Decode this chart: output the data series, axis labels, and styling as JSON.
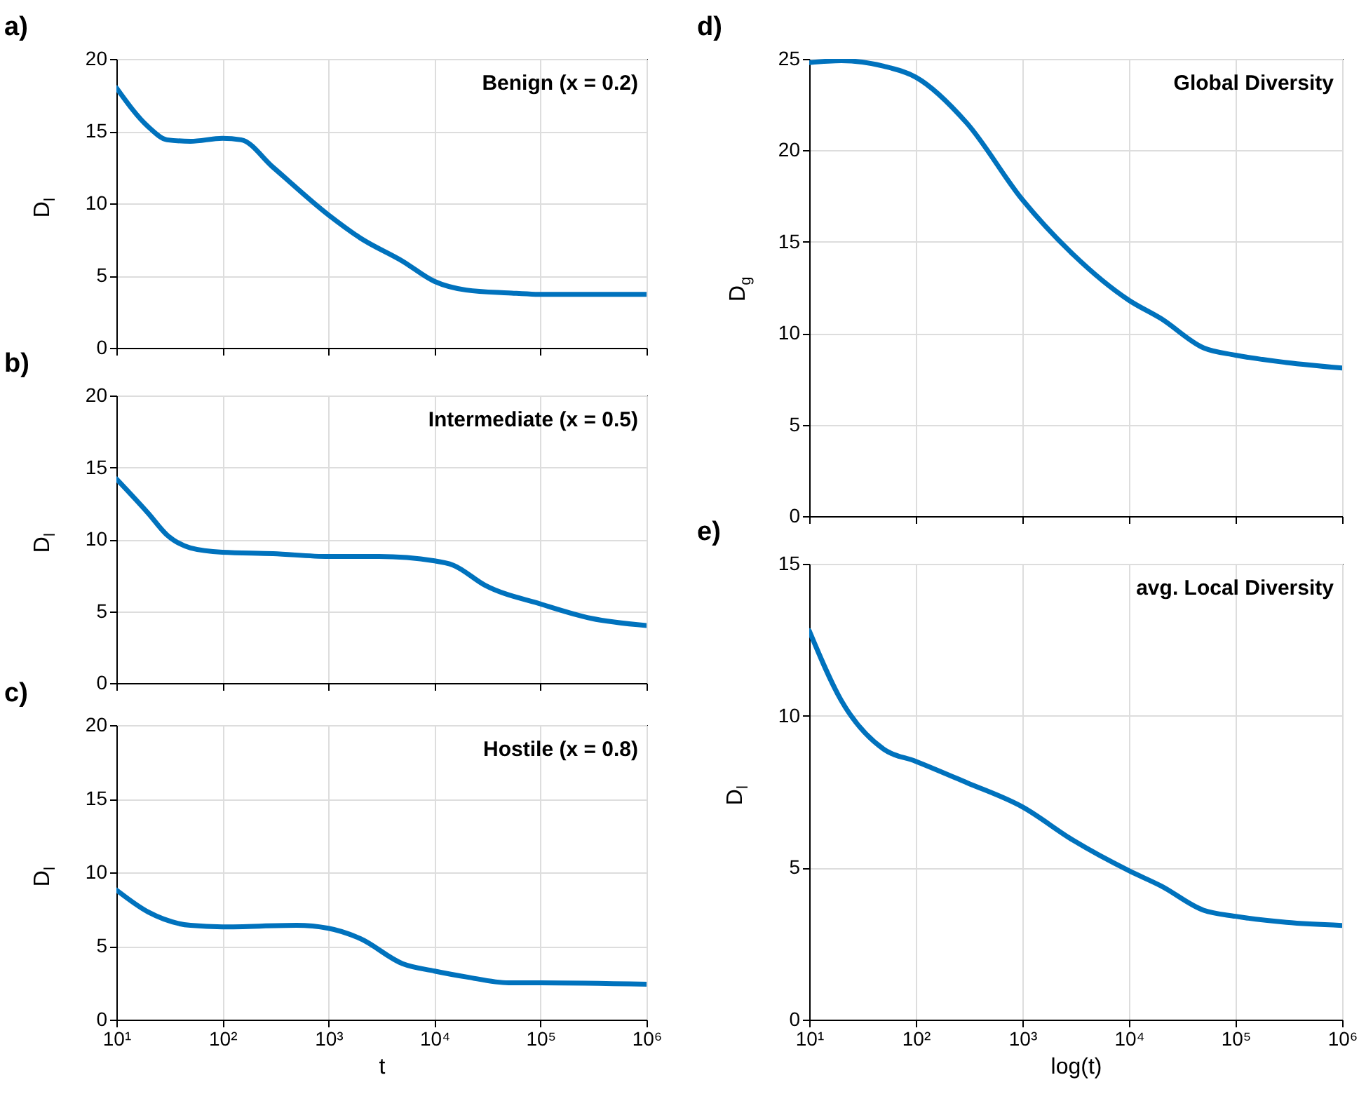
{
  "chart_data": [
    {
      "type": "line",
      "title": "a)",
      "ylabel": "D$_{l}$",
      "annotations": [
        "Benign (x = 0.2)"
      ],
      "log": "x",
      "grid": true,
      "tick_labels": "y",
      "xlim": [
        10,
        1000000
      ],
      "xticks": [
        {
          "value": 10,
          "label": null
        },
        {
          "value": 100,
          "label": null
        },
        {
          "value": 1000,
          "label": null
        },
        {
          "value": 10000,
          "label": null
        },
        {
          "value": 100000,
          "label": null
        },
        {
          "value": 1000000,
          "label": null
        }
      ],
      "ylim": [
        0,
        20
      ],
      "yticks": [
        0,
        5,
        10,
        15,
        20
      ],
      "series": [
        {
          "color": "#0072bd",
          "x": [
            10,
            20,
            30,
            50,
            100,
            150,
            300,
            1000,
            2000,
            5000,
            10000,
            20000,
            50000,
            100000,
            1000000
          ],
          "values": [
            18,
            15.3,
            14.4,
            14.3,
            14.5,
            14.4,
            12.5,
            9.2,
            7.6,
            6.0,
            4.6,
            4.0,
            3.8,
            3.7,
            3.7
          ]
        }
      ]
    },
    {
      "type": "line",
      "title": "b)",
      "ylabel": "D$_{l}$",
      "annotations": [
        "Intermediate (x = 0.5)"
      ],
      "log": "x",
      "grid": true,
      "tick_labels": "y",
      "xlim": [
        10,
        1000000
      ],
      "xticks": [
        {
          "value": 10,
          "label": null
        },
        {
          "value": 100,
          "label": null
        },
        {
          "value": 1000,
          "label": null
        },
        {
          "value": 10000,
          "label": null
        },
        {
          "value": 100000,
          "label": null
        },
        {
          "value": 1000000,
          "label": null
        }
      ],
      "ylim": [
        0,
        20
      ],
      "yticks": [
        0,
        5,
        10,
        15,
        20
      ],
      "series": [
        {
          "color": "#0072bd",
          "x": [
            10,
            20,
            30,
            50,
            100,
            300,
            1000,
            3000,
            10000,
            15000,
            30000,
            100000,
            300000,
            1000000
          ],
          "values": [
            14.2,
            11.8,
            10.3,
            9.4,
            9.1,
            9.0,
            8.8,
            8.8,
            8.5,
            8.2,
            6.8,
            5.5,
            4.5,
            4.0
          ]
        }
      ]
    },
    {
      "type": "line",
      "title": "c)",
      "ylabel": "D$_{l}$",
      "xlabel": "t",
      "annotations": [
        "Hostile (x = 0.8)"
      ],
      "log": "x",
      "grid": true,
      "xlim": [
        10,
        1000000
      ],
      "xticks": [
        {
          "value": 10,
          "label": "10¹"
        },
        {
          "value": 100,
          "label": "10²"
        },
        {
          "value": 1000,
          "label": "10³"
        },
        {
          "value": 10000,
          "label": "10⁴"
        },
        {
          "value": 100000,
          "label": "10⁵"
        },
        {
          "value": 1000000,
          "label": "10⁶"
        }
      ],
      "ylim": [
        0,
        20
      ],
      "yticks": [
        0,
        5,
        10,
        15,
        20
      ],
      "series": [
        {
          "color": "#0072bd",
          "x": [
            10,
            20,
            50,
            100,
            500,
            1000,
            2000,
            5000,
            10000,
            20000,
            50000,
            100000,
            1000000
          ],
          "values": [
            8.8,
            7.3,
            6.4,
            6.3,
            6.4,
            6.2,
            5.5,
            3.8,
            3.3,
            2.9,
            2.5,
            2.5,
            2.4
          ]
        }
      ]
    },
    {
      "type": "line",
      "title": "d)",
      "ylabel": "D$_{g}$",
      "annotations": [
        "Global Diversity"
      ],
      "log": "x",
      "grid": true,
      "tick_labels": "y",
      "xlim": [
        10,
        1000000
      ],
      "xticks": [
        {
          "value": 10,
          "label": null
        },
        {
          "value": 100,
          "label": null
        },
        {
          "value": 1000,
          "label": null
        },
        {
          "value": 10000,
          "label": null
        },
        {
          "value": 100000,
          "label": null
        },
        {
          "value": 1000000,
          "label": null
        }
      ],
      "ylim": [
        0,
        25
      ],
      "yticks": [
        0,
        5,
        10,
        15,
        20,
        25
      ],
      "series": [
        {
          "color": "#0072bd",
          "x": [
            10,
            20,
            50,
            100,
            300,
            1000,
            3000,
            10000,
            20000,
            50000,
            100000,
            300000,
            1000000
          ],
          "values": [
            24.8,
            24.9,
            24.6,
            24.0,
            21.5,
            17.3,
            14.3,
            11.8,
            10.8,
            9.2,
            8.8,
            8.4,
            8.1
          ]
        }
      ]
    },
    {
      "type": "line",
      "title": "e)",
      "ylabel": "D$_{l}$",
      "xlabel": "log(t)",
      "annotations": [
        "avg. Local Diversity"
      ],
      "log": "x",
      "grid": true,
      "xlim": [
        10,
        1000000
      ],
      "xticks": [
        {
          "value": 10,
          "label": "10¹"
        },
        {
          "value": 100,
          "label": "10²"
        },
        {
          "value": 1000,
          "label": "10³"
        },
        {
          "value": 10000,
          "label": "10⁴"
        },
        {
          "value": 100000,
          "label": "10⁵"
        },
        {
          "value": 1000000,
          "label": "10⁶"
        }
      ],
      "ylim": [
        0,
        15
      ],
      "yticks": [
        0,
        5,
        10,
        15
      ],
      "series": [
        {
          "color": "#0072bd",
          "x": [
            10,
            20,
            50,
            100,
            300,
            1000,
            3000,
            10000,
            20000,
            50000,
            100000,
            300000,
            1000000
          ],
          "values": [
            12.8,
            10.5,
            8.9,
            8.5,
            7.8,
            7.0,
            5.9,
            4.9,
            4.4,
            3.6,
            3.4,
            3.2,
            3.1
          ]
        }
      ]
    }
  ]
}
